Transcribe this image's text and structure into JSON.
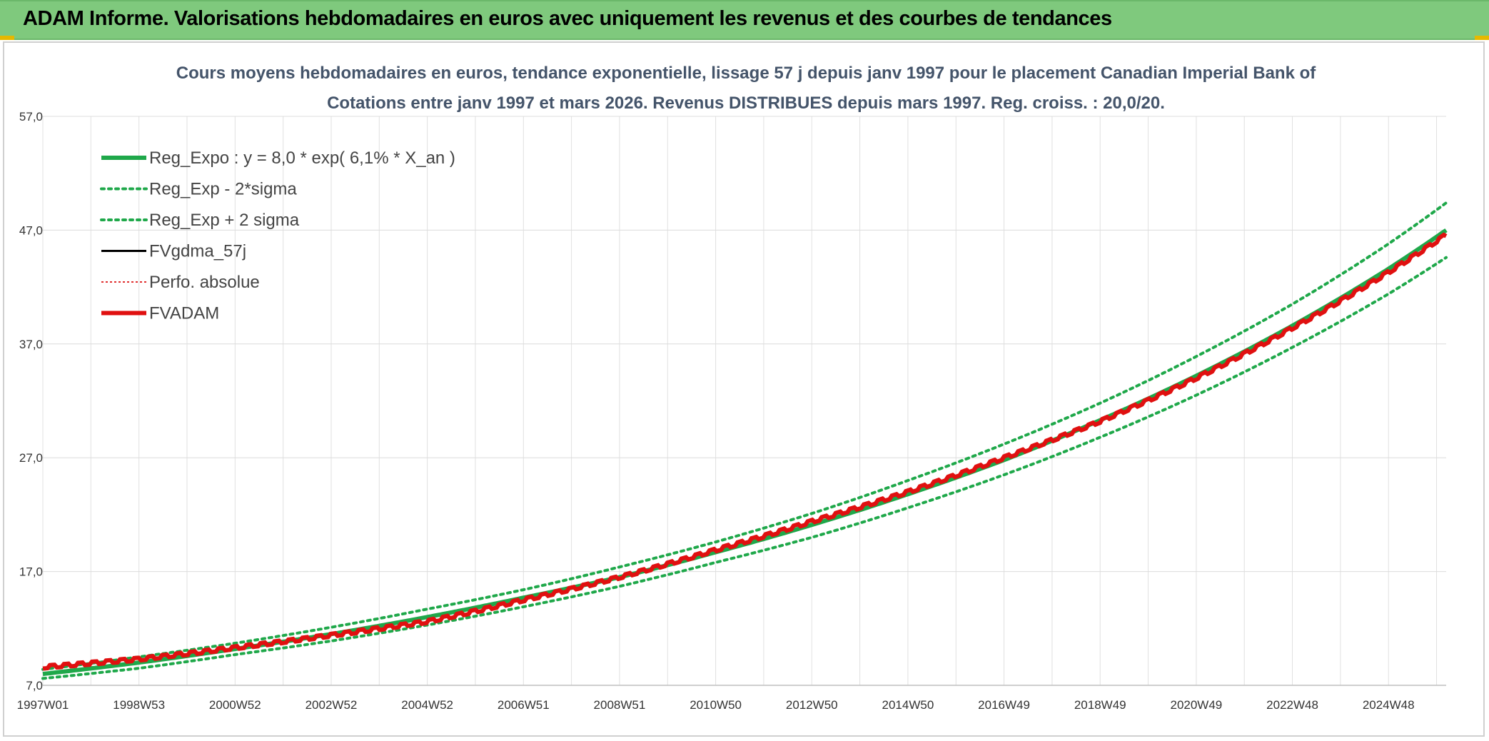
{
  "banner": {
    "title": "ADAM Informe. Valorisations hebdomadaires en euros avec uniquement les revenus et des courbes de tendances"
  },
  "chart_data": {
    "type": "line",
    "title": "Cours moyens hebdomadaires en euros, tendance exponentielle, lissage 57 j depuis janv 1997 pour le placement Canadian Imperial Bank of",
    "subtitle": "Cotations entre janv 1997 et mars 2026. Revenus DISTRIBUES depuis mars 1997. Reg. croiss. : 20,0/20.",
    "xlabel": "",
    "ylabel": "",
    "y_ticks": [
      "7,0",
      "17,0",
      "27,0",
      "37,0",
      "47,0",
      "57,0"
    ],
    "ylim": [
      7,
      57
    ],
    "x_tick_labels": [
      "1997W01",
      "1998W53",
      "2000W52",
      "2002W52",
      "2004W52",
      "2006W51",
      "2008W51",
      "2010W50",
      "2012W50",
      "2014W50",
      "2016W49",
      "2018W49",
      "2020W49",
      "2022W48",
      "2024W48"
    ],
    "x_range_years": [
      1997.0,
      2026.2
    ],
    "grid": true,
    "legend_position": "top-left",
    "series": [
      {
        "name": "Reg_Expo : y = 8,0 * exp( 6,1% *  X_an )",
        "color": "#1fa84a",
        "style": "solid-thick",
        "x": [
          1997,
          1999,
          2001,
          2003,
          2005,
          2007,
          2009,
          2011,
          2013,
          2015,
          2017,
          2019,
          2021,
          2023,
          2025,
          2026.2
        ],
        "y": [
          8.0,
          9.0,
          10.2,
          11.5,
          13.0,
          14.7,
          16.5,
          18.7,
          21.1,
          23.8,
          26.8,
          30.3,
          34.2,
          38.6,
          43.6,
          47.0
        ]
      },
      {
        "name": "Reg_Exp - 2*sigma",
        "color": "#1fa84a",
        "style": "dotted",
        "x": [
          1997,
          1999,
          2001,
          2003,
          2005,
          2007,
          2009,
          2011,
          2013,
          2015,
          2017,
          2019,
          2021,
          2023,
          2025,
          2026.2
        ],
        "y": [
          7.6,
          8.5,
          9.7,
          10.9,
          12.3,
          13.9,
          15.7,
          17.8,
          20.0,
          22.6,
          25.5,
          28.8,
          32.5,
          36.7,
          41.4,
          44.6
        ]
      },
      {
        "name": "Reg_Exp + 2 sigma",
        "color": "#1fa84a",
        "style": "dotted",
        "x": [
          1997,
          1999,
          2001,
          2003,
          2005,
          2007,
          2009,
          2011,
          2013,
          2015,
          2017,
          2019,
          2021,
          2023,
          2025,
          2026.2
        ],
        "y": [
          8.4,
          9.5,
          10.7,
          12.1,
          13.7,
          15.4,
          17.4,
          19.6,
          22.1,
          25.0,
          28.2,
          31.8,
          35.9,
          40.5,
          45.8,
          49.4
        ]
      },
      {
        "name": "FVgdma_57j",
        "color": "#000000",
        "style": "solid",
        "x": [],
        "y": []
      },
      {
        "name": "Perfo. absolue",
        "color": "#e03030",
        "style": "dotted-thin",
        "x": [],
        "y": []
      },
      {
        "name": "FVADAM",
        "color": "#e01010",
        "style": "solid-thick",
        "x": [
          1997,
          1999,
          2001,
          2003,
          2005,
          2007,
          2009,
          2011,
          2013,
          2015,
          2017,
          2019,
          2021,
          2023,
          2025,
          2026.2
        ],
        "y": [
          8.6,
          9.3,
          10.3,
          11.4,
          12.6,
          14.5,
          16.5,
          18.9,
          21.4,
          24.0,
          27.0,
          30.2,
          34.0,
          38.4,
          43.3,
          46.6
        ]
      }
    ]
  }
}
